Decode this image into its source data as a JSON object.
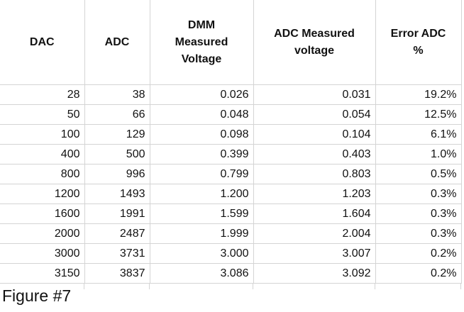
{
  "table": {
    "header": [
      "DAC",
      "ADC",
      "DMM Measured Voltage",
      "ADC Measured voltage",
      "Error ADC %"
    ],
    "rows": [
      [
        "28",
        "38",
        "0.026",
        "0.031",
        "19.2%"
      ],
      [
        "50",
        "66",
        "0.048",
        "0.054",
        "12.5%"
      ],
      [
        "100",
        "129",
        "0.098",
        "0.104",
        "6.1%"
      ],
      [
        "400",
        "500",
        "0.399",
        "0.403",
        "1.0%"
      ],
      [
        "800",
        "996",
        "0.799",
        "0.803",
        "0.5%"
      ],
      [
        "1200",
        "1493",
        "1.200",
        "1.203",
        "0.3%"
      ],
      [
        "1600",
        "1991",
        "1.599",
        "1.604",
        "0.3%"
      ],
      [
        "2000",
        "2487",
        "1.999",
        "2.004",
        "0.3%"
      ],
      [
        "3000",
        "3731",
        "3.000",
        "3.007",
        "0.2%"
      ],
      [
        "3150",
        "3837",
        "3.086",
        "3.092",
        "0.2%"
      ]
    ]
  },
  "caption": "Figure #7"
}
